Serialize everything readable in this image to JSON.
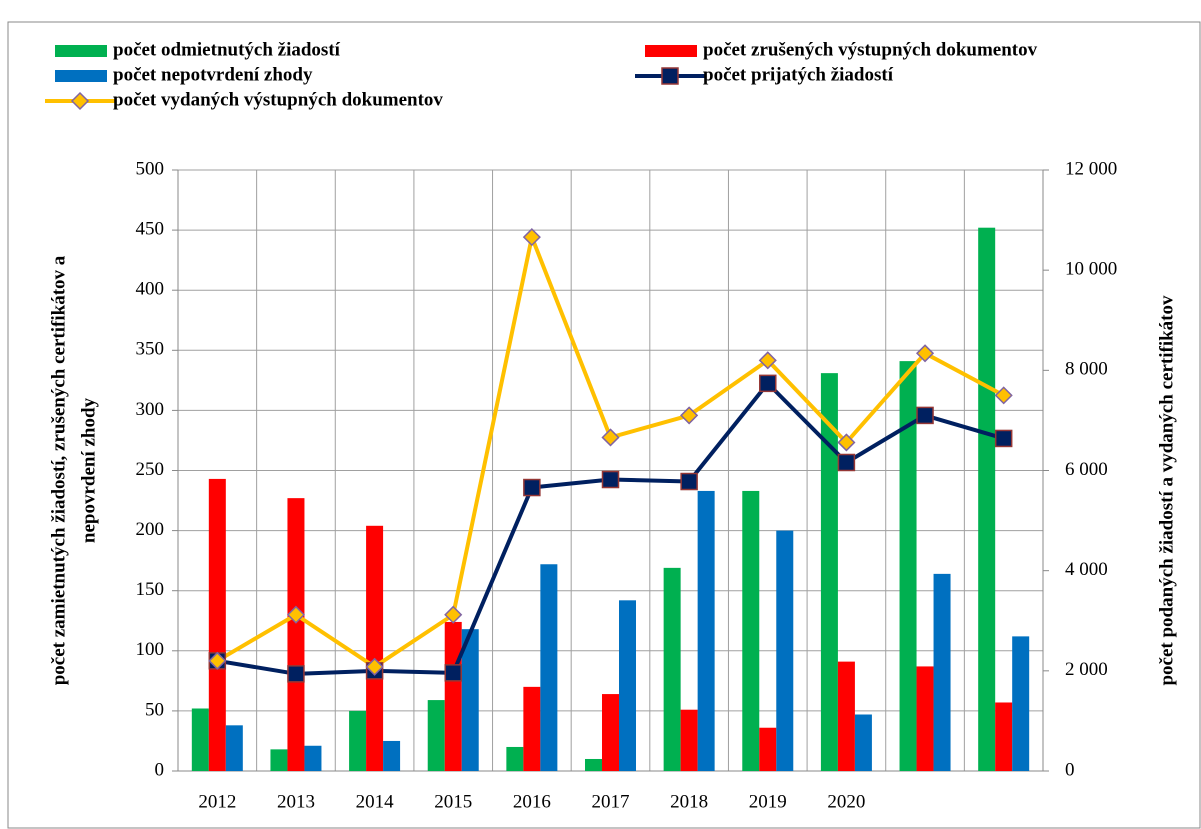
{
  "chart_data": {
    "type": "bar_line",
    "categories": [
      "2012",
      "2013",
      "2014",
      "2015",
      "2016",
      "2017",
      "2018",
      "2019",
      "2020",
      null,
      null
    ],
    "series": [
      {
        "name": "počet odmietnutých žiadostí",
        "color": "#00b050",
        "type": "bar",
        "values": [
          52,
          18,
          50,
          59,
          20,
          10,
          169,
          233,
          331,
          341,
          452
        ]
      },
      {
        "name": "počet zrušených výstupných dokumentov",
        "color": "#ff0000",
        "type": "bar",
        "values": [
          243,
          227,
          204,
          124,
          70,
          64,
          51,
          36,
          91,
          87,
          57
        ]
      },
      {
        "name": "počet nepotvrdení zhody",
        "color": "#0070c0",
        "type": "bar",
        "values": [
          38,
          21,
          25,
          118,
          172,
          142,
          233,
          200,
          47,
          164,
          112
        ]
      },
      {
        "name": "počet prijatých žiadostí",
        "color": "#002060",
        "type": "line",
        "axis": "y2",
        "values": [
          2200,
          1940,
          2000,
          1960,
          5660,
          5820,
          5780,
          7740,
          6160,
          7100,
          6640
        ]
      },
      {
        "name": "počet vydaných výstupných dokumentov",
        "color": "#ffc000",
        "type": "line",
        "axis": "y2",
        "values": [
          2200,
          3120,
          2080,
          3120,
          10660,
          6660,
          7100,
          8200,
          6560,
          8340,
          7500
        ]
      }
    ],
    "y_label": [
      "počet zamietnutých žiadostí, zrušených certifikátov a",
      "nepovrdení zhody"
    ],
    "y2_label": "počet podaných žiadostí a vydaných certifikátov",
    "ylim": [
      0,
      500
    ],
    "yticks": [
      0,
      50,
      100,
      150,
      200,
      250,
      300,
      350,
      400,
      450,
      500
    ],
    "y2lim": [
      0,
      12000
    ],
    "y2ticks": [
      0,
      {
        "value": 2000,
        "label": "2 000"
      },
      {
        "value": 4000,
        "label": "4 000"
      },
      {
        "value": 6000,
        "label": "6 000"
      },
      {
        "value": 8000,
        "label": "8 000"
      },
      {
        "value": 10000,
        "label": "10 000"
      },
      {
        "value": 12000,
        "label": "12 000"
      }
    ],
    "grid": true,
    "legend": "top"
  }
}
